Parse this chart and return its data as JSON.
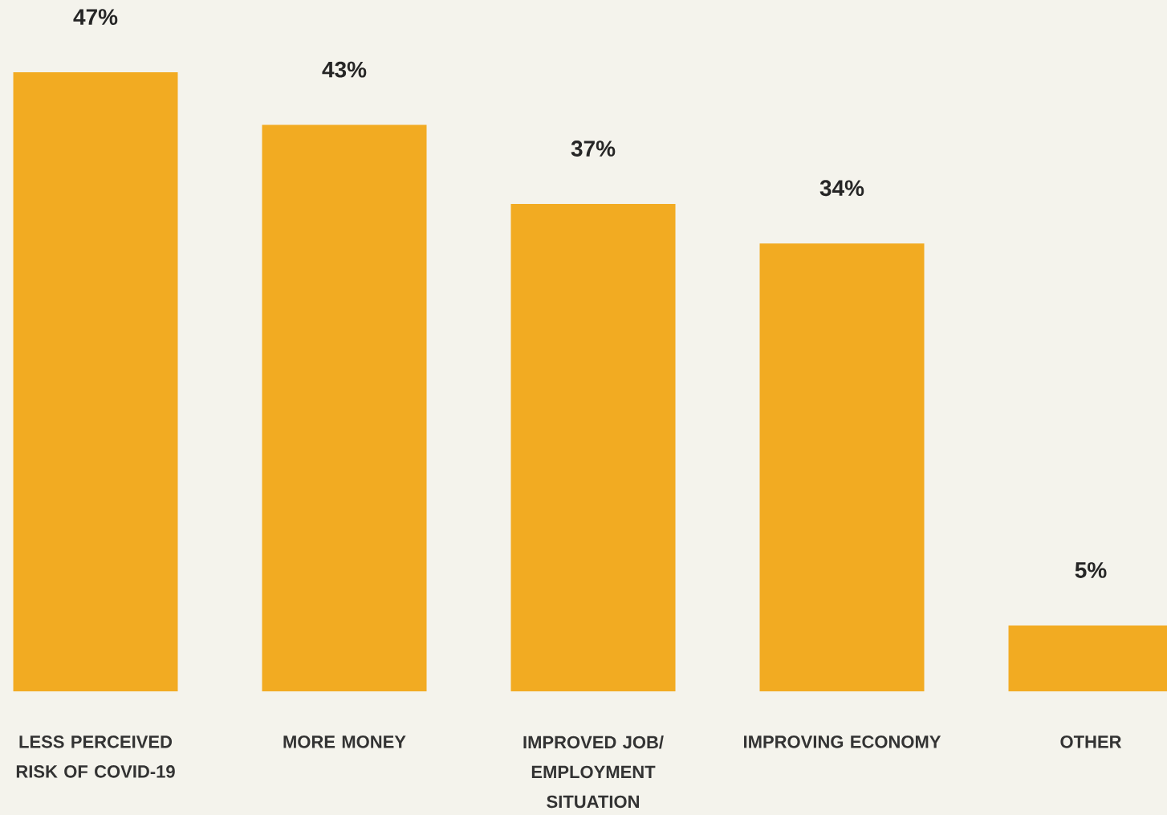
{
  "chart_data": {
    "type": "bar",
    "categories": [
      "LESS PERCEIVED RISK OF COVID-19",
      "MORE MONEY",
      "IMPROVED JOB/ EMPLOYMENT SITUATION",
      "IMPROVING ECONOMY",
      "OTHER"
    ],
    "values": [
      47,
      43,
      37,
      34,
      5
    ],
    "value_labels": [
      "47%",
      "43%",
      "37%",
      "34%",
      "5%"
    ],
    "color": "#f2ab22"
  }
}
